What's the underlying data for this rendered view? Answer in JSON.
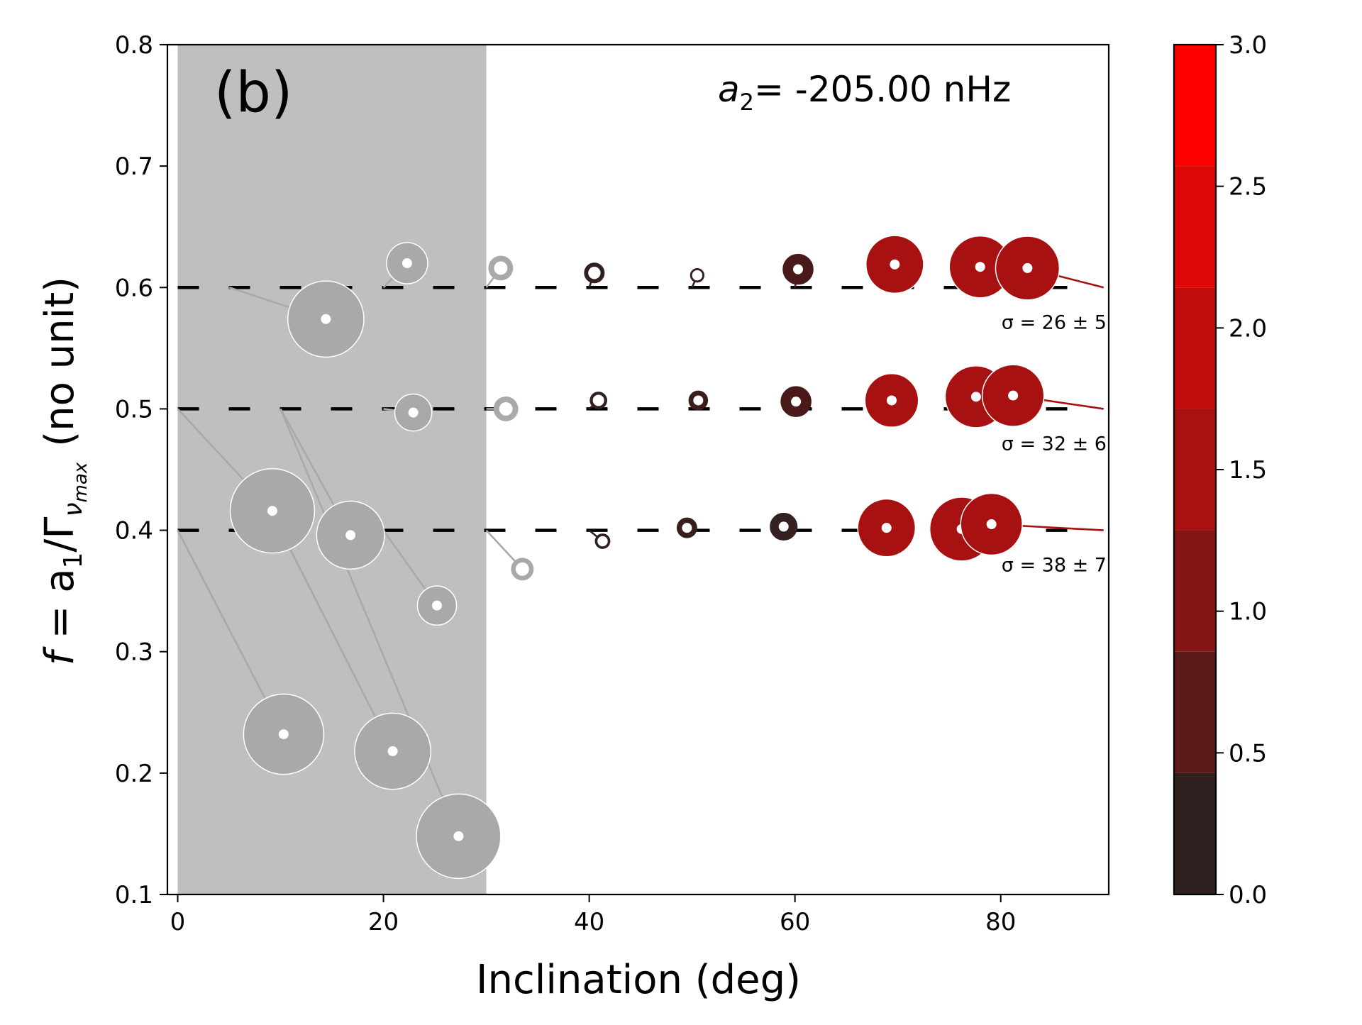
{
  "chart_data": {
    "type": "scatter",
    "panel_label": "(b)",
    "annotation": {
      "symbol": "a",
      "subscript": "2",
      "text": "= -205.00 nHz"
    },
    "xlabel": "Inclination (deg)",
    "ylabel": {
      "f": "f",
      "eq": " = a",
      "sub1": "1",
      "slash": "/Γ",
      "sub_nu": "ν",
      "sub_max": "max",
      "unit": "(no unit)"
    },
    "xlim": [
      -1,
      90.5
    ],
    "ylim": [
      0.1,
      0.8
    ],
    "xticks": [
      "0",
      "20",
      "40",
      "60",
      "80"
    ],
    "xtick_values": [
      0,
      20,
      40,
      60,
      80
    ],
    "yticks": [
      "0.1",
      "0.2",
      "0.3",
      "0.4",
      "0.5",
      "0.6",
      "0.7",
      "0.8"
    ],
    "ytick_values": [
      0.1,
      0.2,
      0.3,
      0.4,
      0.5,
      0.6,
      0.7,
      0.8
    ],
    "shaded_region": {
      "x": [
        0,
        30
      ],
      "color": "#bfbfbf"
    },
    "reference_lines": [
      {
        "y": 0.6,
        "label": "σ = 26 ± 5"
      },
      {
        "y": 0.5,
        "label": "σ = 32 ± 6"
      },
      {
        "y": 0.4,
        "label": "σ = 38 ± 7"
      }
    ],
    "colorbar": {
      "range": [
        0,
        3
      ],
      "ticks": [
        "0.0",
        "0.5",
        "1.0",
        "1.5",
        "2.0",
        "2.5",
        "3.0"
      ],
      "tick_values": [
        0,
        0.5,
        1,
        1.5,
        2,
        2.5,
        3
      ],
      "colors": [
        "#312020",
        "#5a1a1a",
        "#841515",
        "#a81111",
        "#c20d0d",
        "#dd0707",
        "#ff0000"
      ]
    },
    "points": [
      {
        "x": 14.4,
        "y": 0.574,
        "true_i": 5,
        "true_f": 0.6,
        "inner": 0,
        "outer": 3.7,
        "color": "#a9a9a9",
        "ring": false
      },
      {
        "x": 22.3,
        "y": 0.62,
        "true_i": 20,
        "true_f": 0.6,
        "inner": 0,
        "outer": 2.0,
        "color": "#a9a9a9",
        "ring": false
      },
      {
        "x": 31.4,
        "y": 0.616,
        "true_i": 30,
        "true_f": 0.6,
        "inner": 0.65,
        "outer": 1.2,
        "color": "#a9a9a9",
        "ring": true
      },
      {
        "x": 40.5,
        "y": 0.612,
        "true_i": 40,
        "true_f": 0.6,
        "inner": 0.6,
        "outer": 1.0,
        "color": "#322020",
        "ring": true
      },
      {
        "x": 50.5,
        "y": 0.61,
        "true_i": 50,
        "true_f": 0.6,
        "inner": 0.5,
        "outer": 0.7,
        "color": "#342020",
        "ring": true
      },
      {
        "x": 60.3,
        "y": 0.615,
        "true_i": 60,
        "true_f": 0.6,
        "inner": 0.3,
        "outer": 1.5,
        "color": "#4a1a1a",
        "ring": true
      },
      {
        "x": 69.7,
        "y": 0.619,
        "true_i": 70,
        "true_f": 0.6,
        "inner": 0,
        "outer": 2.8,
        "color": "#a81111",
        "ring": false
      },
      {
        "x": 78.0,
        "y": 0.617,
        "true_i": 80,
        "true_f": 0.6,
        "inner": 0,
        "outer": 3.0,
        "color": "#a81111",
        "ring": false
      },
      {
        "x": 82.6,
        "y": 0.616,
        "true_i": 90,
        "true_f": 0.6,
        "inner": 0,
        "outer": 3.1,
        "color": "#a81111",
        "ring": false
      },
      {
        "x": 9.2,
        "y": 0.416,
        "true_i": 0,
        "true_f": 0.5,
        "inner": 0,
        "outer": 4.1,
        "color": "#a9a9a9",
        "ring": false
      },
      {
        "x": 22.9,
        "y": 0.497,
        "true_i": 20,
        "true_f": 0.5,
        "inner": 0,
        "outer": 1.8,
        "color": "#a9a9a9",
        "ring": false
      },
      {
        "x": 31.9,
        "y": 0.5,
        "true_i": 30,
        "true_f": 0.5,
        "inner": 0.65,
        "outer": 1.2,
        "color": "#a9a9a9",
        "ring": true
      },
      {
        "x": 40.9,
        "y": 0.507,
        "true_i": 40,
        "true_f": 0.5,
        "inner": 0.55,
        "outer": 0.85,
        "color": "#342020",
        "ring": true
      },
      {
        "x": 50.6,
        "y": 0.507,
        "true_i": 50,
        "true_f": 0.5,
        "inner": 0.45,
        "outer": 0.95,
        "color": "#3a1e1e",
        "ring": true
      },
      {
        "x": 60.1,
        "y": 0.506,
        "true_i": 60,
        "true_f": 0.5,
        "inner": 0.3,
        "outer": 1.5,
        "color": "#4a1a1a",
        "ring": true
      },
      {
        "x": 69.4,
        "y": 0.507,
        "true_i": 70,
        "true_f": 0.5,
        "inner": 0,
        "outer": 2.6,
        "color": "#a81111",
        "ring": false
      },
      {
        "x": 77.6,
        "y": 0.51,
        "true_i": 80,
        "true_f": 0.5,
        "inner": 0,
        "outer": 3.0,
        "color": "#a81111",
        "ring": false
      },
      {
        "x": 81.2,
        "y": 0.511,
        "true_i": 90,
        "true_f": 0.5,
        "inner": 0,
        "outer": 3.0,
        "color": "#a81111",
        "ring": false
      },
      {
        "x": 16.8,
        "y": 0.396,
        "true_i": 10,
        "true_f": 0.5,
        "inner": 0,
        "outer": 3.3,
        "color": "#a9a9a9",
        "ring": false
      },
      {
        "x": 10.3,
        "y": 0.232,
        "true_i": 0,
        "true_f": 0.4,
        "inner": 0,
        "outer": 3.9,
        "color": "#a9a9a9",
        "ring": false
      },
      {
        "x": 20.9,
        "y": 0.218,
        "true_i": 10,
        "true_f": 0.4,
        "inner": 0,
        "outer": 3.7,
        "color": "#a9a9a9",
        "ring": false
      },
      {
        "x": 25.2,
        "y": 0.338,
        "true_i": 20,
        "true_f": 0.4,
        "inner": 0,
        "outer": 1.9,
        "color": "#a9a9a9",
        "ring": false
      },
      {
        "x": 27.3,
        "y": 0.148,
        "true_i": 10,
        "true_f": 0.5,
        "inner": 0,
        "outer": 4.1,
        "color": "#a9a9a9",
        "ring": false
      },
      {
        "x": 33.5,
        "y": 0.368,
        "true_i": 30,
        "true_f": 0.4,
        "inner": 0.65,
        "outer": 1.1,
        "color": "#a9a9a9",
        "ring": true
      },
      {
        "x": 41.3,
        "y": 0.391,
        "true_i": 40,
        "true_f": 0.4,
        "inner": 0.5,
        "outer": 0.75,
        "color": "#322020",
        "ring": true
      },
      {
        "x": 49.5,
        "y": 0.402,
        "true_i": 50,
        "true_f": 0.4,
        "inner": 0.45,
        "outer": 1.0,
        "color": "#3a1e1e",
        "ring": true
      },
      {
        "x": 58.9,
        "y": 0.403,
        "true_i": 60,
        "true_f": 0.4,
        "inner": 0.35,
        "outer": 1.35,
        "color": "#342020",
        "ring": true
      },
      {
        "x": 68.9,
        "y": 0.402,
        "true_i": 70,
        "true_f": 0.4,
        "inner": 0,
        "outer": 2.8,
        "color": "#a81111",
        "ring": false
      },
      {
        "x": 76.2,
        "y": 0.401,
        "true_i": 80,
        "true_f": 0.4,
        "inner": 0,
        "outer": 3.1,
        "color": "#a81111",
        "ring": false
      },
      {
        "x": 79.1,
        "y": 0.405,
        "true_i": 90,
        "true_f": 0.4,
        "inner": 0,
        "outer": 3.0,
        "color": "#a81111",
        "ring": false
      }
    ]
  }
}
